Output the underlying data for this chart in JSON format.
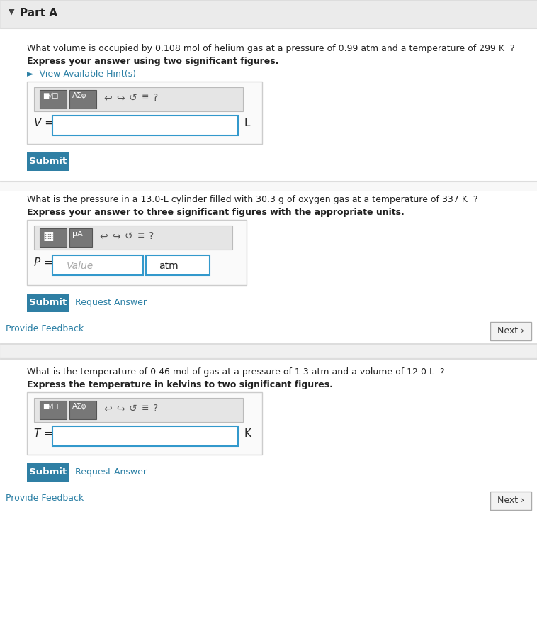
{
  "white": "#ffffff",
  "light_gray_bg": "#f0f0f0",
  "header_bg": "#ebebeb",
  "section_bg": "#f5f5f5",
  "border_color": "#cccccc",
  "divider_color": "#dddddd",
  "teal_btn": "#2f7fa4",
  "teal_link": "#2a7fa4",
  "input_border_color": "#3399cc",
  "toolbar_bg": "#e5e5e5",
  "toolbar_border": "#bbbbbb",
  "btn_gray": "#808080",
  "text_dark": "#222222",
  "text_gray": "#999999",
  "next_btn_bg": "#f2f2f2",
  "next_btn_border": "#aaaaaa",
  "part_a_label": "Part A",
  "q1_text": "What volume is occupied by 0.108 mol of helium gas at a pressure of 0.99 atm and a temperature of 299 K  ?",
  "q1_bold": "Express your answer using two significant figures.",
  "q1_hint": "►  View Available Hint(s)",
  "q1_var": "V =",
  "q1_unit": "L",
  "q2_text": "What is the pressure in a 13.0-L cylinder filled with 30.3 g of oxygen gas at a temperature of 337 K  ?",
  "q2_bold": "Express your answer to three significant figures with the appropriate units.",
  "q2_var": "P =",
  "q2_placeholder": "Value",
  "q2_unit": "atm",
  "q3_text": "What is the temperature of 0.46 mol of gas at a pressure of 1.3 atm and a volume of 12.0 L  ?",
  "q3_bold": "Express the temperature in kelvins to two significant figures.",
  "q3_var": "T =",
  "q3_unit": "K",
  "submit_text": "Submit",
  "request_text": "Request Answer",
  "feedback_text": "Provide Feedback",
  "next_text": "Next ›"
}
